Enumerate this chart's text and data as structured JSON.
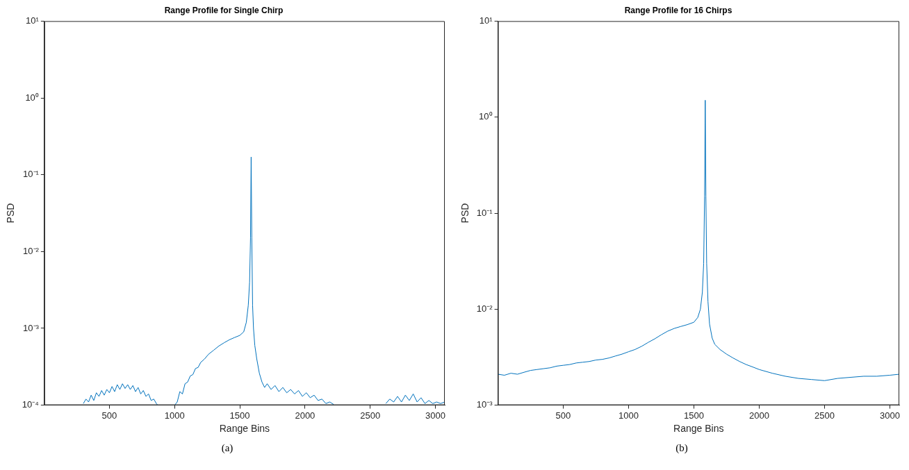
{
  "chart_data": [
    {
      "type": "line",
      "title": "Range Profile for Single Chirp",
      "xlabel": "Range Bins",
      "ylabel": "PSD",
      "annotations": [
        "(a)"
      ],
      "log": "y",
      "xlim": [
        1,
        3072
      ],
      "xticks": [
        500,
        1000,
        1500,
        2000,
        2500,
        3000
      ],
      "ylim": [
        0.0001,
        10
      ],
      "yticks": [
        {
          "value": 0.0001,
          "label": "10⁻⁴"
        },
        {
          "value": 0.001,
          "label": "10⁻³"
        },
        {
          "value": 0.01,
          "label": "10⁻²"
        },
        {
          "value": 0.1,
          "label": "10⁻¹"
        },
        {
          "value": 1,
          "label": "10⁰"
        },
        {
          "value": 10,
          "label": "10¹"
        }
      ],
      "series": [
        {
          "color": "#0072bd",
          "x": [
            300,
            320,
            340,
            360,
            380,
            400,
            420,
            440,
            460,
            480,
            500,
            520,
            540,
            560,
            580,
            600,
            620,
            640,
            660,
            680,
            700,
            720,
            740,
            760,
            780,
            800,
            820,
            840,
            860,
            870,
            900,
            1000,
            1020,
            1040,
            1060,
            1080,
            1100,
            1120,
            1140,
            1160,
            1180,
            1200,
            1230,
            1260,
            1300,
            1340,
            1380,
            1420,
            1460,
            1500,
            1530,
            1550,
            1565,
            1575,
            1582,
            1587,
            1592,
            1598,
            1605,
            1615,
            1630,
            1650,
            1670,
            1690,
            1710,
            1740,
            1770,
            1800,
            1830,
            1860,
            1890,
            1920,
            1950,
            1980,
            2010,
            2040,
            2070,
            2100,
            2130,
            2160,
            2190,
            2220,
            2240,
            2620,
            2650,
            2680,
            2710,
            2740,
            2770,
            2800,
            2830,
            2860,
            2890,
            2920,
            2950,
            2980,
            3010,
            3040,
            3072
          ],
          "values": [
            0.000105,
            0.00012,
            0.00011,
            0.000135,
            0.000115,
            0.000145,
            0.00013,
            0.000155,
            0.000135,
            0.00016,
            0.000145,
            0.000175,
            0.00015,
            0.000185,
            0.00016,
            0.00019,
            0.000165,
            0.000185,
            0.00016,
            0.00018,
            0.00015,
            0.00017,
            0.00014,
            0.000155,
            0.00013,
            0.00014,
            0.000115,
            0.00012,
            0.000105,
            0.0001,
            null,
            0.0001,
            0.00011,
            0.00015,
            0.00014,
            0.00019,
            0.0002,
            0.00024,
            0.00025,
            0.0003,
            0.00031,
            0.00036,
            0.0004,
            0.00046,
            0.00052,
            0.00059,
            0.00065,
            0.00071,
            0.00076,
            0.00081,
            0.0009,
            0.0012,
            0.002,
            0.004,
            0.015,
            0.17,
            0.015,
            0.002,
            0.001,
            0.0006,
            0.0004,
            0.00026,
            0.0002,
            0.00017,
            0.00019,
            0.00016,
            0.00018,
            0.00015,
            0.00017,
            0.000145,
            0.00016,
            0.00014,
            0.000155,
            0.00013,
            0.000145,
            0.000125,
            0.000135,
            0.000115,
            0.00012,
            0.000105,
            0.00011,
            0.000102,
            null,
            0.000105,
            0.00012,
            0.00011,
            0.00013,
            0.00011,
            0.000135,
            0.000115,
            0.00014,
            0.00011,
            0.000125,
            0.000105,
            0.000115,
            0.000105,
            0.00011,
            0.000105,
            0.00011
          ]
        }
      ]
    },
    {
      "type": "line",
      "title": "Range Profile for 16 Chirps",
      "xlabel": "Range Bins",
      "ylabel": "PSD",
      "annotations": [
        "(b)"
      ],
      "log": "y",
      "xlim": [
        1,
        3072
      ],
      "xticks": [
        500,
        1000,
        1500,
        2000,
        2500,
        3000
      ],
      "ylim": [
        0.001,
        10
      ],
      "yticks": [
        {
          "value": 0.001,
          "label": "10⁻³"
        },
        {
          "value": 0.01,
          "label": "10⁻²"
        },
        {
          "value": 0.1,
          "label": "10⁻¹"
        },
        {
          "value": 1,
          "label": "10⁰"
        },
        {
          "value": 10,
          "label": "10¹"
        }
      ],
      "series": [
        {
          "color": "#0072bd",
          "x": [
            1,
            50,
            100,
            150,
            200,
            250,
            300,
            350,
            400,
            450,
            500,
            550,
            600,
            650,
            700,
            750,
            800,
            850,
            900,
            950,
            1000,
            1050,
            1100,
            1150,
            1200,
            1250,
            1300,
            1350,
            1400,
            1450,
            1500,
            1530,
            1550,
            1565,
            1575,
            1582,
            1587,
            1592,
            1598,
            1608,
            1620,
            1640,
            1660,
            1700,
            1750,
            1800,
            1850,
            1900,
            1950,
            2000,
            2100,
            2200,
            2300,
            2400,
            2500,
            2600,
            2700,
            2800,
            2900,
            3000,
            3072
          ],
          "values": [
            0.0021,
            0.00205,
            0.00215,
            0.0021,
            0.0022,
            0.0023,
            0.00235,
            0.0024,
            0.00245,
            0.00255,
            0.0026,
            0.00265,
            0.00275,
            0.0028,
            0.00285,
            0.00295,
            0.003,
            0.0031,
            0.00325,
            0.0034,
            0.0036,
            0.0038,
            0.0041,
            0.0045,
            0.0049,
            0.0054,
            0.0059,
            0.0063,
            0.0066,
            0.0069,
            0.0073,
            0.0082,
            0.01,
            0.015,
            0.03,
            0.15,
            1.5,
            0.15,
            0.03,
            0.012,
            0.007,
            0.005,
            0.0043,
            0.0038,
            0.0034,
            0.0031,
            0.00285,
            0.00265,
            0.0025,
            0.00235,
            0.00215,
            0.002,
            0.0019,
            0.00185,
            0.0018,
            0.0019,
            0.00195,
            0.002,
            0.002,
            0.00205,
            0.0021
          ]
        }
      ]
    }
  ]
}
